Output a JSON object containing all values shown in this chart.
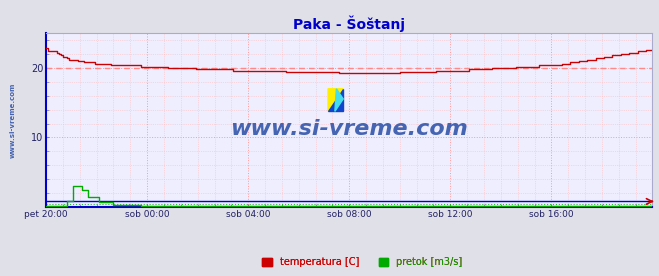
{
  "title": "Paka - Šoštanj",
  "title_color": "#0000cc",
  "bg_color": "#e0e0e8",
  "plot_bg_color": "#eeeeff",
  "xlim": [
    0,
    288
  ],
  "ylim": [
    0,
    25
  ],
  "yticks": [
    10,
    20
  ],
  "xtick_labels": [
    "pet 20:00",
    "sob 00:00",
    "sob 04:00",
    "sob 08:00",
    "sob 12:00",
    "sob 16:00"
  ],
  "xtick_positions": [
    0,
    48,
    96,
    144,
    192,
    240
  ],
  "temp_color": "#cc0000",
  "flow_color": "#00aa00",
  "height_color": "#0000dd",
  "avg_line_color": "#ff8888",
  "avg_line_value": 20,
  "watermark": "www.si-vreme.com",
  "watermark_color": "#3355aa",
  "ylabel_left": "www.si-vreme.com",
  "ylabel_left_color": "#3355aa",
  "figsize": [
    6.59,
    2.76
  ],
  "dpi": 100,
  "logo_yellow": "#ffee00",
  "logo_blue": "#1144cc",
  "logo_cyan": "#44ddee"
}
